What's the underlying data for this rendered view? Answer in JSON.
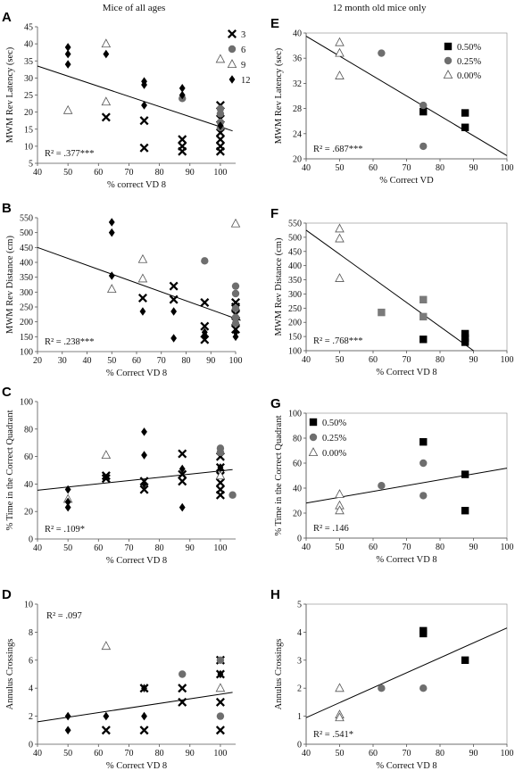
{
  "column_titles": {
    "left": "Mice of all ages",
    "right": "12 month old mice only"
  },
  "marker_colors": {
    "diamond": "#000000",
    "cross": "#000000",
    "circle": "#6e6e6e",
    "triangle": "#ffffff",
    "square": "#000000",
    "square_gray": "#7a7a7a"
  },
  "chart_data": [
    {
      "panel": "A",
      "type": "scatter",
      "title": "",
      "xlabel": "% correct VD 8",
      "ylabel": "MWM Rev Latency (sec)",
      "xlim": [
        40,
        105
      ],
      "xticks": [
        40,
        50,
        60,
        70,
        80,
        90,
        100
      ],
      "ylim": [
        5,
        45
      ],
      "yticks": [
        5,
        10,
        15,
        20,
        25,
        30,
        35,
        40,
        45
      ],
      "frame": false,
      "r2_text": "R² = .377***",
      "r2_pos": "bottom-left",
      "legend": {
        "position": "right",
        "entries": [
          {
            "label": "3",
            "marker": "cross"
          },
          {
            "label": "6",
            "marker": "circle"
          },
          {
            "label": "9",
            "marker": "triangle"
          },
          {
            "label": "12",
            "marker": "diamond"
          }
        ]
      },
      "trendline": {
        "x": [
          40,
          104
        ],
        "y": [
          33.5,
          14.5
        ]
      },
      "series": [
        {
          "name": "3",
          "marker": "cross",
          "x": [
            62.5,
            75,
            75,
            87.5,
            87.5,
            87.5,
            100,
            100,
            100,
            100,
            100,
            100
          ],
          "y": [
            18.5,
            17.5,
            9.5,
            12,
            10,
            8.5,
            22,
            18,
            14,
            12,
            10,
            8.5
          ]
        },
        {
          "name": "6",
          "marker": "circle",
          "x": [
            87.5,
            100,
            100,
            100,
            100
          ],
          "y": [
            24,
            21,
            19.5,
            17,
            15.5
          ]
        },
        {
          "name": "9",
          "marker": "triangle",
          "x": [
            50,
            62.5,
            62.5,
            100
          ],
          "y": [
            20.5,
            40,
            23,
            35.5
          ]
        },
        {
          "name": "12",
          "marker": "diamond",
          "x": [
            50,
            50,
            50,
            62.5,
            75,
            75,
            75,
            87.5,
            87.5,
            100
          ],
          "y": [
            39,
            37,
            34,
            37,
            29,
            28,
            22,
            27,
            25,
            16
          ]
        }
      ]
    },
    {
      "panel": "B",
      "type": "scatter",
      "title": "",
      "xlabel": "% Correct VD 8",
      "ylabel": "MWM Rev Distance (cm)",
      "xlim": [
        20,
        100
      ],
      "xticks": [
        20,
        30,
        40,
        50,
        60,
        70,
        80,
        90,
        100
      ],
      "ylim": [
        100,
        550
      ],
      "yticks": [
        100,
        150,
        200,
        250,
        300,
        350,
        400,
        450,
        500,
        550
      ],
      "frame": false,
      "r2_text": "R² = .238***",
      "r2_pos": "bottom-left",
      "legend": null,
      "trendline": {
        "x": [
          20,
          102
        ],
        "y": [
          450,
          205
        ]
      },
      "series": [
        {
          "name": "3",
          "marker": "cross",
          "x": [
            62.5,
            75,
            75,
            87.5,
            87.5,
            87.5,
            100,
            100,
            100,
            100,
            100
          ],
          "y": [
            280,
            320,
            275,
            265,
            185,
            140,
            265,
            250,
            225,
            200,
            175
          ]
        },
        {
          "name": "6",
          "marker": "circle",
          "x": [
            87.5,
            100,
            100,
            100,
            100,
            100
          ],
          "y": [
            405,
            320,
            295,
            245,
            215,
            195
          ]
        },
        {
          "name": "9",
          "marker": "triangle",
          "x": [
            50,
            62.5,
            62.5,
            100
          ],
          "y": [
            310,
            410,
            345,
            530
          ]
        },
        {
          "name": "12",
          "marker": "diamond",
          "x": [
            50,
            50,
            50,
            62.5,
            75,
            75,
            87.5,
            87.5,
            100,
            100
          ],
          "y": [
            535,
            500,
            355,
            235,
            235,
            145,
            165,
            155,
            165,
            150
          ]
        }
      ]
    },
    {
      "panel": "C",
      "type": "scatter",
      "title": "",
      "xlabel": "% Correct VD 8",
      "ylabel": "% Time in the Correct Quadrant",
      "xlim": [
        40,
        105
      ],
      "xticks": [
        40,
        50,
        60,
        70,
        80,
        90,
        100
      ],
      "ylim": [
        0,
        100
      ],
      "yticks": [
        0,
        20,
        40,
        60,
        80,
        100
      ],
      "frame": false,
      "r2_text": "R² = .109*",
      "r2_pos": "bottom-left",
      "legend": null,
      "trendline": {
        "x": [
          40,
          104
        ],
        "y": [
          35.5,
          50.5
        ]
      },
      "series": [
        {
          "name": "3",
          "marker": "cross",
          "x": [
            62.5,
            62.5,
            75,
            75,
            87.5,
            87.5,
            87.5,
            100,
            100,
            100,
            100,
            100,
            100
          ],
          "y": [
            46,
            44,
            42,
            36,
            62,
            47,
            42,
            60,
            52,
            46,
            41,
            36,
            32
          ]
        },
        {
          "name": "6",
          "marker": "circle",
          "x": [
            100,
            100,
            104
          ],
          "y": [
            66,
            63,
            32
          ]
        },
        {
          "name": "9",
          "marker": "triangle",
          "x": [
            50,
            62.5,
            100
          ],
          "y": [
            29,
            61,
            46
          ]
        },
        {
          "name": "12",
          "marker": "diamond",
          "x": [
            50,
            50,
            50,
            75,
            75,
            75,
            87.5,
            87.5,
            100
          ],
          "y": [
            36,
            27,
            23,
            78,
            61,
            40,
            51,
            23,
            52
          ]
        }
      ]
    },
    {
      "panel": "D",
      "type": "scatter",
      "title": "",
      "xlabel": "% Correct VD 8",
      "ylabel": "Annulus Crossings",
      "xlim": [
        40,
        105
      ],
      "xticks": [
        40,
        50,
        60,
        70,
        80,
        90,
        100
      ],
      "ylim": [
        0,
        10
      ],
      "yticks": [
        0,
        2,
        4,
        6,
        8,
        10
      ],
      "frame": false,
      "r2_text": "R² = .097",
      "r2_pos": "top-left",
      "legend": null,
      "trendline": {
        "x": [
          40,
          104
        ],
        "y": [
          1.6,
          3.7
        ]
      },
      "series": [
        {
          "name": "3",
          "marker": "cross",
          "x": [
            62.5,
            75,
            75,
            87.5,
            87.5,
            100,
            100,
            100,
            100
          ],
          "y": [
            1,
            4,
            1,
            4,
            3,
            6,
            5,
            3,
            1
          ]
        },
        {
          "name": "6",
          "marker": "circle",
          "x": [
            87.5,
            100,
            100
          ],
          "y": [
            5,
            6,
            2
          ]
        },
        {
          "name": "9",
          "marker": "triangle",
          "x": [
            62.5,
            100
          ],
          "y": [
            7,
            4
          ]
        },
        {
          "name": "12",
          "marker": "diamond",
          "x": [
            50,
            50,
            62.5,
            75,
            75,
            100
          ],
          "y": [
            2,
            1,
            2,
            4,
            2,
            5
          ]
        }
      ]
    },
    {
      "panel": "E",
      "type": "scatter",
      "title": "",
      "xlabel": "% Correct VD",
      "ylabel": "MWM Rev Latency (sec)",
      "xlim": [
        40,
        100
      ],
      "xticks": [
        40,
        50,
        60,
        70,
        80,
        90,
        100
      ],
      "ylim": [
        20,
        40
      ],
      "yticks": [
        20,
        24,
        28,
        32,
        36,
        40
      ],
      "frame": true,
      "r2_text": "R² = .687***",
      "r2_pos": "bottom-left",
      "legend": {
        "position": "top-right",
        "entries": [
          {
            "label": "0.50%",
            "marker": "square"
          },
          {
            "label": "0.25%",
            "marker": "circle"
          },
          {
            "label": "0.00%",
            "marker": "triangle"
          }
        ]
      },
      "trendline": {
        "x": [
          40,
          100
        ],
        "y": [
          39.5,
          20.5
        ]
      },
      "series": [
        {
          "name": "0.50%",
          "marker": "square",
          "x": [
            75,
            87.5,
            87.5
          ],
          "y": [
            27.5,
            27.3,
            25
          ]
        },
        {
          "name": "0.25%",
          "marker": "circle",
          "x": [
            62.5,
            75,
            75
          ],
          "y": [
            36.8,
            28.5,
            22
          ]
        },
        {
          "name": "0.00%",
          "marker": "triangle",
          "x": [
            50,
            50,
            50
          ],
          "y": [
            38.5,
            36.8,
            33.2
          ]
        }
      ]
    },
    {
      "panel": "F",
      "type": "scatter",
      "title": "",
      "xlabel": "% Correct VD 8",
      "ylabel": "MWM Rev Distance (cm)",
      "xlim": [
        40,
        100
      ],
      "xticks": [
        40,
        50,
        60,
        70,
        80,
        90,
        100
      ],
      "ylim": [
        100,
        550
      ],
      "yticks": [
        100,
        150,
        200,
        250,
        300,
        350,
        400,
        450,
        500,
        550
      ],
      "frame": true,
      "r2_text": "R² = .768***",
      "r2_pos": "bottom-left",
      "legend": null,
      "trendline": {
        "x": [
          40,
          90
        ],
        "y": [
          525,
          100
        ]
      },
      "series": [
        {
          "name": "0.50%",
          "marker": "square",
          "x": [
            75,
            87.5,
            87.5,
            87.5
          ],
          "y": [
            140,
            160,
            145,
            130
          ]
        },
        {
          "name": "0.25%",
          "marker": "square_gray",
          "x": [
            62.5,
            75,
            75
          ],
          "y": [
            235,
            280,
            220
          ]
        },
        {
          "name": "0.00%",
          "marker": "triangle",
          "x": [
            50,
            50,
            50
          ],
          "y": [
            530,
            495,
            355
          ]
        }
      ]
    },
    {
      "panel": "G",
      "type": "scatter",
      "title": "",
      "xlabel": "% Correct VD 8",
      "ylabel": "% Time in the Correct Quadrant",
      "xlim": [
        40,
        100
      ],
      "xticks": [
        40,
        50,
        60,
        70,
        80,
        90,
        100
      ],
      "ylim": [
        0,
        100
      ],
      "yticks": [
        0,
        20,
        40,
        60,
        80,
        100
      ],
      "frame": true,
      "r2_text": "R² = .146",
      "r2_pos": "bottom-left",
      "legend": {
        "position": "top-left",
        "entries": [
          {
            "label": "0.50%",
            "marker": "square"
          },
          {
            "label": "0.25%",
            "marker": "circle"
          },
          {
            "label": "0.00%",
            "marker": "triangle"
          }
        ]
      },
      "trendline": {
        "x": [
          40,
          100
        ],
        "y": [
          28,
          56
        ]
      },
      "series": [
        {
          "name": "0.50%",
          "marker": "square",
          "x": [
            75,
            87.5,
            87.5
          ],
          "y": [
            77,
            51,
            22
          ]
        },
        {
          "name": "0.25%",
          "marker": "circle",
          "x": [
            62.5,
            75,
            75
          ],
          "y": [
            42,
            60,
            34
          ]
        },
        {
          "name": "0.00%",
          "marker": "triangle",
          "x": [
            50,
            50,
            50
          ],
          "y": [
            35,
            26,
            22
          ]
        }
      ]
    },
    {
      "panel": "H",
      "type": "scatter",
      "title": "",
      "xlabel": "% Correct VD 8",
      "ylabel": "Annulus Crossings",
      "xlim": [
        40,
        100
      ],
      "xticks": [
        40,
        50,
        60,
        70,
        80,
        90,
        100
      ],
      "ylim": [
        0,
        5
      ],
      "yticks": [
        0,
        1,
        2,
        3,
        4,
        5
      ],
      "frame": true,
      "r2_text": "R² = .541*",
      "r2_pos": "bottom-left",
      "legend": null,
      "trendline": {
        "x": [
          40,
          100
        ],
        "y": [
          0.95,
          4.15
        ]
      },
      "series": [
        {
          "name": "0.50%",
          "marker": "square",
          "x": [
            75,
            75,
            87.5
          ],
          "y": [
            4.05,
            3.95,
            3
          ]
        },
        {
          "name": "0.25%",
          "marker": "circle",
          "x": [
            62.5,
            75
          ],
          "y": [
            2,
            2
          ]
        },
        {
          "name": "0.00%",
          "marker": "triangle",
          "x": [
            50,
            50,
            50
          ],
          "y": [
            2,
            1.05,
            0.95
          ]
        }
      ]
    }
  ]
}
